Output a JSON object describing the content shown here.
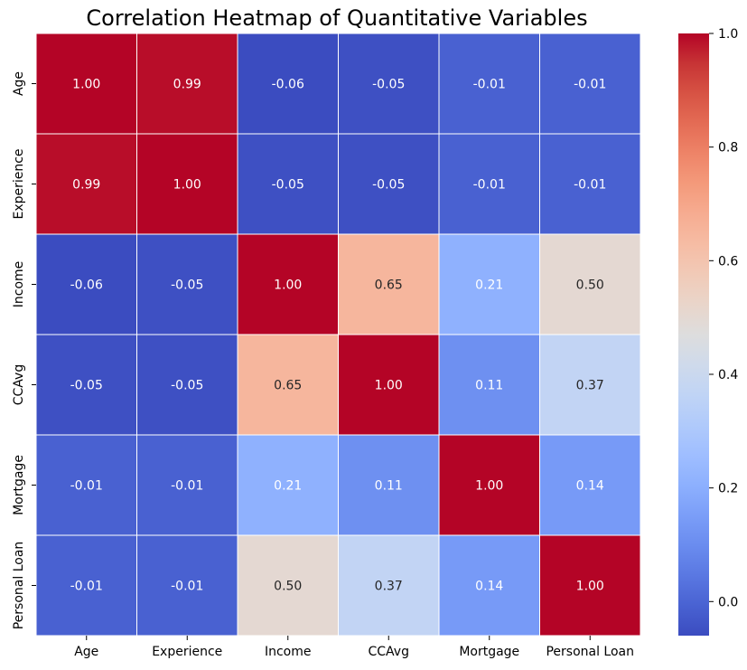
{
  "chart_data": {
    "type": "heatmap",
    "title": "Correlation Heatmap of Quantitative Variables",
    "xlabel": "",
    "ylabel": "",
    "x_categories": [
      "Age",
      "Experience",
      "Income",
      "CCAvg",
      "Mortgage",
      "Personal Loan"
    ],
    "y_categories": [
      "Age",
      "Experience",
      "Income",
      "CCAvg",
      "Mortgage",
      "Personal Loan"
    ],
    "values": [
      [
        1.0,
        0.99,
        -0.06,
        -0.05,
        -0.01,
        -0.01
      ],
      [
        0.99,
        1.0,
        -0.05,
        -0.05,
        -0.01,
        -0.01
      ],
      [
        -0.06,
        -0.05,
        1.0,
        0.65,
        0.21,
        0.5
      ],
      [
        -0.05,
        -0.05,
        0.65,
        1.0,
        0.11,
        0.37
      ],
      [
        -0.01,
        -0.01,
        0.21,
        0.11,
        1.0,
        0.14
      ],
      [
        -0.01,
        -0.01,
        0.5,
        0.37,
        0.14,
        1.0
      ]
    ],
    "value_format": "0.00",
    "colormap": "coolwarm",
    "vmin": -0.06,
    "vmax": 1.0,
    "colorbar_ticks": [
      0.0,
      0.2,
      0.4,
      0.6,
      0.8,
      1.0
    ],
    "grid_line_color": "#ffffff",
    "colors": {
      "low": "#3b4cc0",
      "mid": "#dddddd",
      "high": "#b40426"
    }
  }
}
